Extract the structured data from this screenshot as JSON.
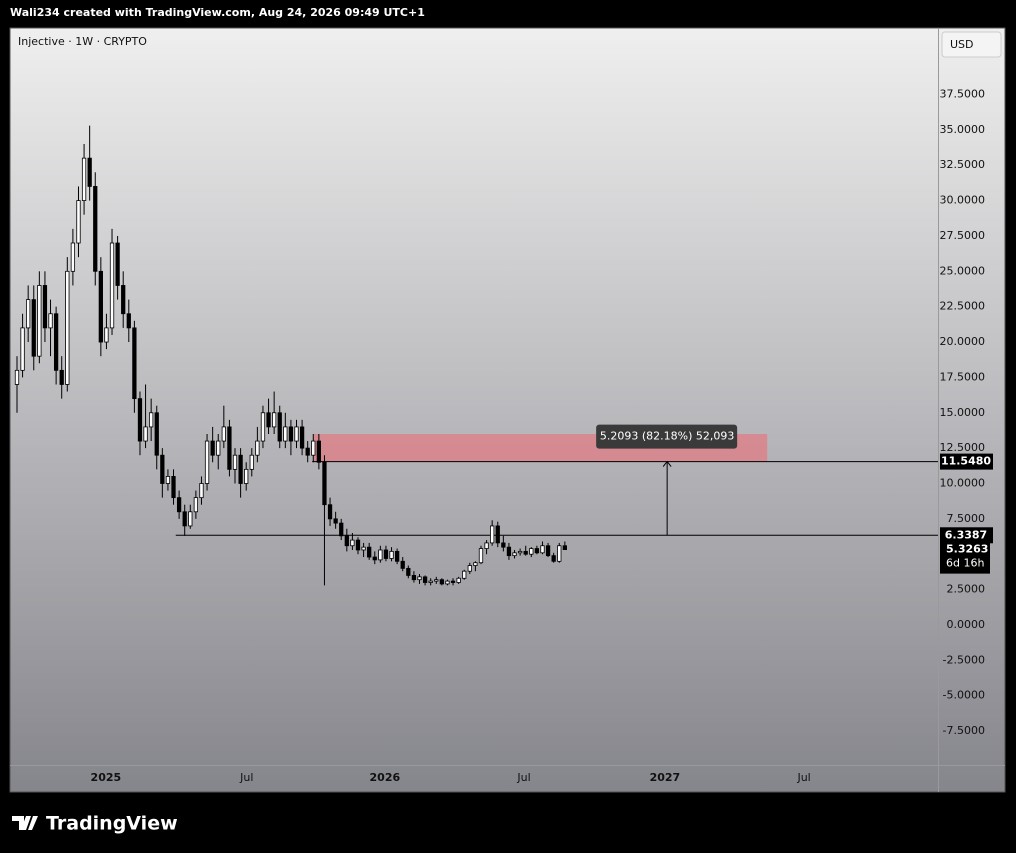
{
  "header": {
    "credit": "Wali234 created with TradingView.com, Aug 24, 2026 09:49 UTC+1",
    "symbol": "Injective · 1W · CRYPTO",
    "currency": "USD"
  },
  "footer": {
    "brand": "TradingView"
  },
  "chart_data": {
    "type": "candlestick",
    "ohlc": [
      [
        17,
        19,
        15,
        18
      ],
      [
        18,
        22,
        17.5,
        21
      ],
      [
        21,
        24,
        20,
        23
      ],
      [
        23,
        24,
        18,
        19
      ],
      [
        19,
        25,
        18.5,
        24
      ],
      [
        24,
        25,
        20,
        21
      ],
      [
        21,
        23,
        19,
        22
      ],
      [
        22,
        22.5,
        17,
        18
      ],
      [
        18,
        19,
        16,
        17
      ],
      [
        17,
        26,
        16.5,
        25
      ],
      [
        25,
        28,
        24,
        27
      ],
      [
        27,
        31,
        26,
        30
      ],
      [
        30,
        34,
        29,
        33
      ],
      [
        33,
        35.3,
        30,
        31
      ],
      [
        31,
        32,
        24,
        25
      ],
      [
        25,
        26,
        19,
        20
      ],
      [
        20,
        22,
        19.5,
        21
      ],
      [
        21,
        28,
        20.5,
        27
      ],
      [
        27,
        27.5,
        23,
        24
      ],
      [
        24,
        25,
        21,
        22
      ],
      [
        22,
        23,
        20,
        21
      ],
      [
        21,
        21.5,
        15,
        16
      ],
      [
        16,
        16.5,
        12,
        13
      ],
      [
        13,
        17,
        12.5,
        14
      ],
      [
        14,
        16,
        13,
        15
      ],
      [
        15,
        15.5,
        11,
        12
      ],
      [
        12,
        12.5,
        9,
        10
      ],
      [
        10,
        11,
        9.5,
        10.5
      ],
      [
        10.5,
        11,
        8.5,
        9
      ],
      [
        9,
        9.5,
        7.5,
        8
      ],
      [
        8,
        8.5,
        6.3,
        7
      ],
      [
        7,
        8.5,
        6.8,
        8
      ],
      [
        8,
        9.5,
        7.5,
        9
      ],
      [
        9,
        10.5,
        8.5,
        10
      ],
      [
        10,
        13.5,
        9.5,
        13
      ],
      [
        13,
        14,
        11.5,
        12
      ],
      [
        12,
        13.5,
        11,
        13
      ],
      [
        13,
        15.5,
        12.5,
        14
      ],
      [
        14,
        14.5,
        10.5,
        11
      ],
      [
        11,
        12.5,
        10,
        12
      ],
      [
        12,
        12.5,
        9,
        10
      ],
      [
        10,
        11.5,
        9.5,
        11
      ],
      [
        11,
        12.5,
        10.5,
        12
      ],
      [
        12,
        14,
        11.5,
        13
      ],
      [
        13,
        15.5,
        12.5,
        15
      ],
      [
        15,
        16,
        13.5,
        14
      ],
      [
        14,
        16.5,
        13.5,
        15
      ],
      [
        15,
        15.5,
        12.5,
        13
      ],
      [
        13,
        15,
        12.5,
        14
      ],
      [
        14,
        14.5,
        12,
        13
      ],
      [
        13,
        14.5,
        12.5,
        14
      ],
      [
        14,
        14.5,
        12,
        12.5
      ],
      [
        12.5,
        13,
        11.5,
        12
      ],
      [
        12,
        13.5,
        11.5,
        13
      ],
      [
        13,
        13.5,
        11,
        11.5
      ],
      [
        11.5,
        12,
        2.8,
        8.5
      ],
      [
        8.5,
        9,
        7,
        7.5
      ],
      [
        7.5,
        8,
        6.8,
        7.2
      ],
      [
        7.2,
        7.5,
        6,
        6.3
      ],
      [
        6.3,
        6.8,
        5.2,
        5.6
      ],
      [
        5.6,
        6.5,
        5.3,
        6
      ],
      [
        6,
        6.2,
        5,
        5.3
      ],
      [
        5.3,
        5.8,
        4.8,
        5.5
      ],
      [
        5.5,
        5.8,
        4.6,
        4.8
      ],
      [
        4.8,
        5.2,
        4.3,
        4.6
      ],
      [
        4.6,
        5.6,
        4.4,
        5.3
      ],
      [
        5.3,
        5.6,
        4.5,
        4.7
      ],
      [
        4.7,
        5.5,
        4.5,
        5.2
      ],
      [
        5.2,
        5.4,
        4.3,
        4.5
      ],
      [
        4.5,
        4.8,
        3.8,
        4
      ],
      [
        4,
        4.2,
        3.3,
        3.5
      ],
      [
        3.5,
        3.8,
        3,
        3.2
      ],
      [
        3.2,
        3.6,
        2.9,
        3.4
      ],
      [
        3.4,
        3.5,
        2.8,
        3
      ],
      [
        3,
        3.3,
        2.8,
        3.1
      ],
      [
        3.1,
        3.4,
        2.9,
        3.2
      ],
      [
        3.2,
        3.3,
        2.8,
        2.9
      ],
      [
        2.9,
        3.2,
        2.8,
        3.1
      ],
      [
        3.1,
        3.3,
        2.8,
        3
      ],
      [
        3,
        3.4,
        2.9,
        3.3
      ],
      [
        3.3,
        3.9,
        3.2,
        3.8
      ],
      [
        3.8,
        4.4,
        3.6,
        4.2
      ],
      [
        4.2,
        4.5,
        3.8,
        4.4
      ],
      [
        4.4,
        5.6,
        4.3,
        5.4
      ],
      [
        5.4,
        6,
        5,
        5.8
      ],
      [
        5.8,
        7.4,
        5.6,
        7
      ],
      [
        7,
        7.3,
        5.5,
        5.8
      ],
      [
        5.8,
        6.3,
        5.2,
        5.5
      ],
      [
        5.5,
        5.8,
        4.6,
        4.9
      ],
      [
        4.9,
        5.3,
        4.7,
        5.1
      ],
      [
        5.1,
        5.4,
        4.9,
        5.2
      ],
      [
        5.2,
        5.6,
        4.9,
        5
      ],
      [
        5,
        5.5,
        4.8,
        5.4
      ],
      [
        5.4,
        5.6,
        5,
        5.1
      ],
      [
        5.1,
        5.9,
        5,
        5.6
      ],
      [
        5.6,
        5.8,
        4.8,
        4.9
      ],
      [
        4.9,
        5.1,
        4.4,
        4.5
      ],
      [
        4.5,
        5.8,
        4.4,
        5.6
      ],
      [
        5.6,
        5.9,
        5.3,
        5.3263
      ]
    ],
    "up_color": "#ffffff",
    "down_color": "#000000",
    "xlim": [
      -1.25,
      164.75
    ],
    "xticks": [
      {
        "value": 15.9,
        "label": "2025"
      },
      {
        "value": 41.1,
        "label": "Jul"
      },
      {
        "value": 65.8,
        "label": "2026"
      },
      {
        "value": 90.7,
        "label": "Jul"
      },
      {
        "value": 115.9,
        "label": "2027"
      },
      {
        "value": 140.8,
        "label": "Jul"
      }
    ],
    "ylim": [
      -9.9,
      42.2
    ],
    "yticks": [
      {
        "value": 37.5,
        "label": "37.5000"
      },
      {
        "value": 35,
        "label": "35.0000"
      },
      {
        "value": 32.5,
        "label": "32.5000"
      },
      {
        "value": 30,
        "label": "30.0000"
      },
      {
        "value": 27.5,
        "label": "27.5000"
      },
      {
        "value": 25,
        "label": "25.0000"
      },
      {
        "value": 22.5,
        "label": "22.5000"
      },
      {
        "value": 20,
        "label": "20.0000"
      },
      {
        "value": 17.5,
        "label": "17.5000"
      },
      {
        "value": 15,
        "label": "15.0000"
      },
      {
        "value": 12.5,
        "label": "12.5000"
      },
      {
        "value": 10,
        "label": "10.0000"
      },
      {
        "value": 7.5,
        "label": "7.5000"
      },
      {
        "value": 5,
        "label": "5.0000"
      },
      {
        "value": 2.5,
        "label": "2.5000"
      },
      {
        "value": 0,
        "label": "0.0000"
      },
      {
        "value": -2.5,
        "label": "-2.5000"
      },
      {
        "value": -5,
        "label": "-5.0000"
      },
      {
        "value": -7.5,
        "label": "-7.5000"
      }
    ],
    "grid": false,
    "levels": [
      {
        "value": 11.548,
        "label": "11.5480",
        "from_x": 52.8
      },
      {
        "value": 6.3387,
        "label": "6.3387",
        "from_x": 28.4
      }
    ],
    "last_price": {
      "value": 5.3263,
      "label": "5.3263",
      "countdown": "6d 16h"
    },
    "zone": {
      "from_x": 53.1,
      "to_x": 134.2,
      "low": 11.548,
      "high": 13.5,
      "color": "#e07b84"
    },
    "measure": {
      "x": 116.3,
      "from": 6.3387,
      "to": 11.548,
      "label": "5.2093 (82.18%) 52,093"
    }
  }
}
